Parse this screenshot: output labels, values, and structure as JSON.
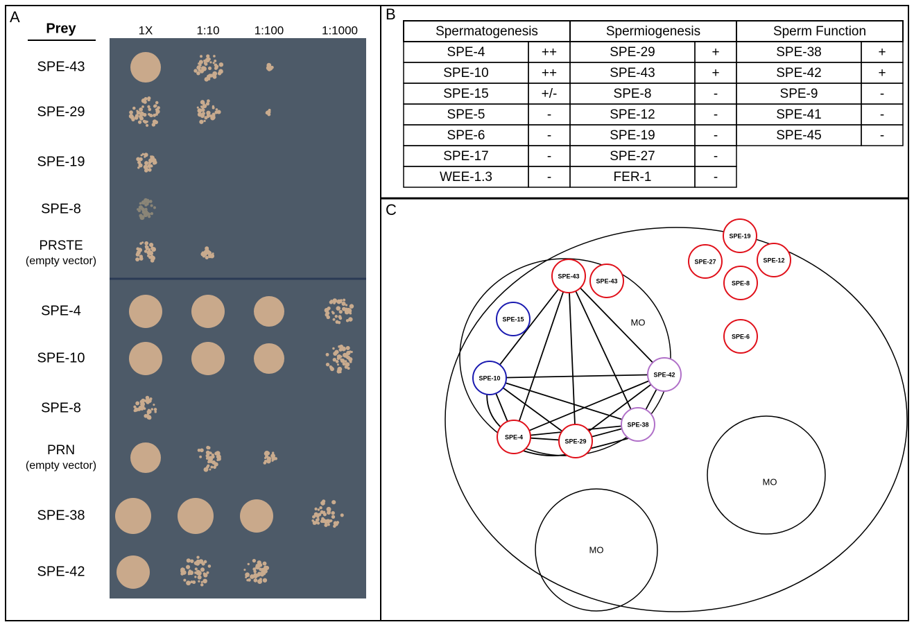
{
  "panel_a": {
    "label": "A",
    "prey_header": "Prey",
    "dilutions": [
      "1X",
      "1:10",
      "1:100",
      "1:1000"
    ],
    "rows": [
      {
        "name": "SPE-43"
      },
      {
        "name": "SPE-29"
      },
      {
        "name": "SPE-19"
      },
      {
        "name": "SPE-8"
      },
      {
        "name": "PRSTE",
        "note": "(empty vector)"
      },
      {
        "name": "SPE-4"
      },
      {
        "name": "SPE-10"
      },
      {
        "name": "SPE-8"
      },
      {
        "name": "PRN",
        "note": "(empty vector)"
      },
      {
        "name": "SPE-38"
      },
      {
        "name": "SPE-42"
      }
    ]
  },
  "panel_b": {
    "label": "B",
    "groups": [
      {
        "title": "Spermatogenesis",
        "rows": [
          [
            "SPE-4",
            "++"
          ],
          [
            "SPE-10",
            "++"
          ],
          [
            "SPE-15",
            "+/-"
          ],
          [
            "SPE-5",
            "-"
          ],
          [
            "SPE-6",
            "-"
          ],
          [
            "SPE-17",
            "-"
          ],
          [
            "WEE-1.3",
            "-"
          ]
        ]
      },
      {
        "title": "Spermiogenesis",
        "rows": [
          [
            "SPE-29",
            "+"
          ],
          [
            "SPE-43",
            "+"
          ],
          [
            "SPE-8",
            "-"
          ],
          [
            "SPE-12",
            "-"
          ],
          [
            "SPE-19",
            "-"
          ],
          [
            "SPE-27",
            "-"
          ],
          [
            "FER-1",
            "-"
          ]
        ]
      },
      {
        "title": "Sperm Function",
        "rows": [
          [
            "SPE-38",
            "+"
          ],
          [
            "SPE-42",
            "+"
          ],
          [
            "SPE-9",
            "-"
          ],
          [
            "SPE-41",
            "-"
          ],
          [
            "SPE-45",
            "-"
          ]
        ]
      }
    ]
  },
  "panel_c": {
    "label": "C",
    "compartments": [
      "MO",
      "MO",
      "MO"
    ],
    "nodes": [
      {
        "label": "SPE-43",
        "color": "#e0101a"
      },
      {
        "label": "SPE-43",
        "color": "#e0101a"
      },
      {
        "label": "SPE-15",
        "color": "#1a1ab0"
      },
      {
        "label": "SPE-10",
        "color": "#1a1ab0"
      },
      {
        "label": "SPE-42",
        "color": "#b070c8"
      },
      {
        "label": "SPE-38",
        "color": "#b070c8"
      },
      {
        "label": "SPE-4",
        "color": "#e0101a"
      },
      {
        "label": "SPE-29",
        "color": "#e0101a"
      },
      {
        "label": "SPE-19",
        "color": "#e0101a"
      },
      {
        "label": "SPE-27",
        "color": "#e0101a"
      },
      {
        "label": "SPE-12",
        "color": "#e0101a"
      },
      {
        "label": "SPE-8",
        "color": "#e0101a"
      },
      {
        "label": "SPE-6",
        "color": "#e0101a"
      }
    ]
  }
}
